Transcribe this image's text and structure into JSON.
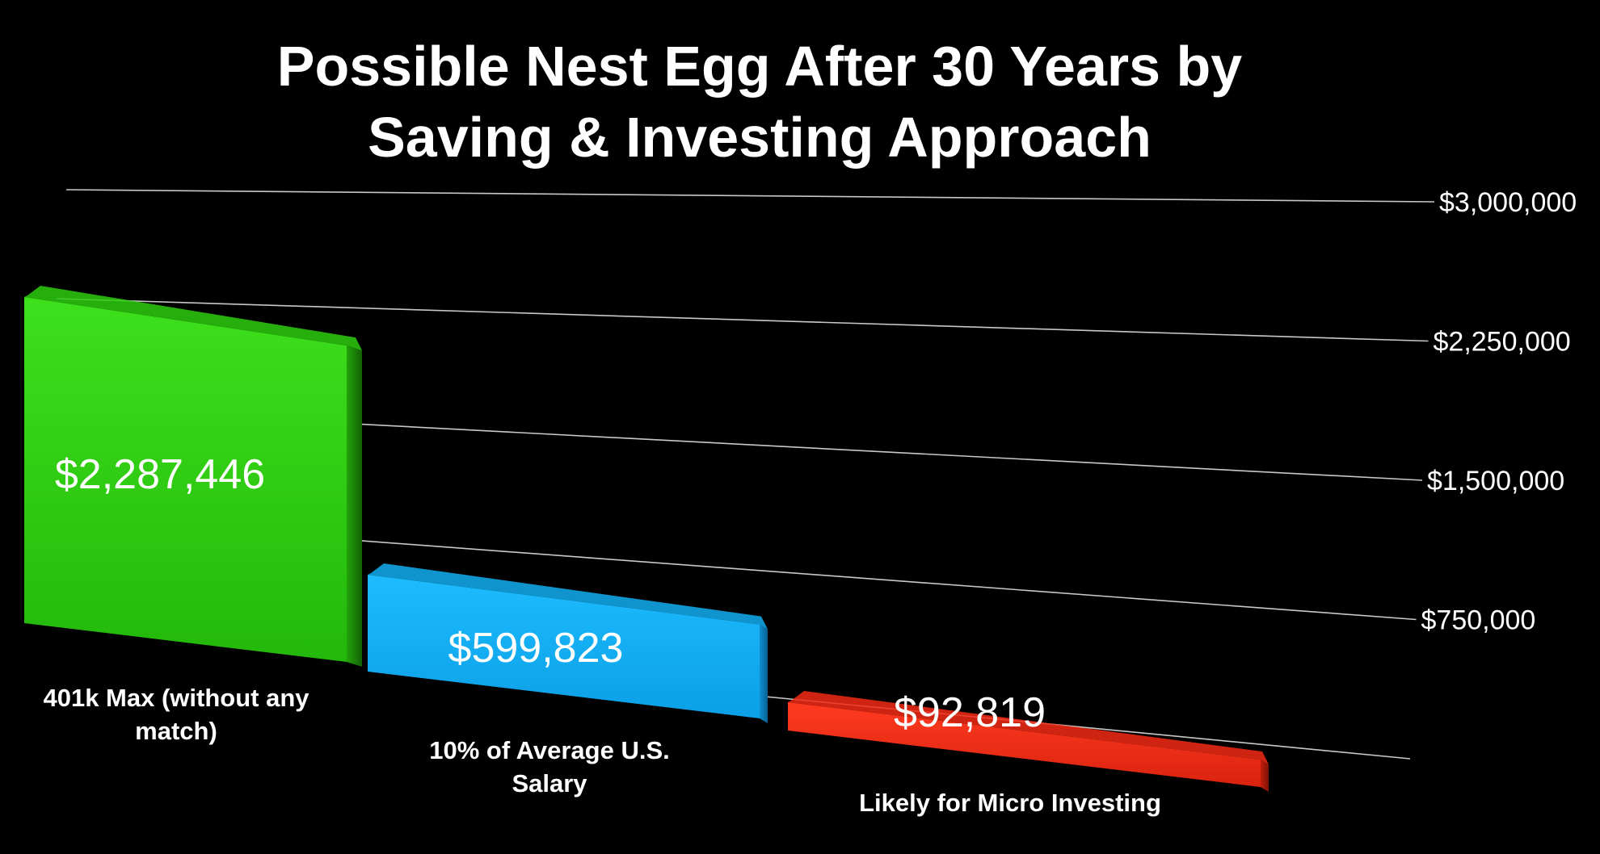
{
  "chart_data": {
    "type": "bar",
    "title": "Possible Nest Egg After 30 Years by Saving & Investing Approach",
    "title_lines": [
      "Possible Nest Egg After 30 Years by",
      "Saving & Investing Approach"
    ],
    "categories": [
      "401k Max (without any match)",
      "10% of Average U.S. Salary",
      "Likely for Micro Investing"
    ],
    "category_label_lines": [
      [
        "401k Max (without any",
        "match)"
      ],
      [
        "10% of Average U.S.",
        "Salary"
      ],
      [
        "Likely for Micro Investing"
      ]
    ],
    "values": [
      2287446,
      599823,
      92819
    ],
    "value_labels": [
      "$2,287,446",
      "$599,823",
      "$92,819"
    ],
    "colors": [
      "#2dcc0f",
      "#12aef2",
      "#f22a14"
    ],
    "ylim": [
      0,
      3000000
    ],
    "yticks": [
      750000,
      1500000,
      2250000,
      3000000
    ],
    "ytick_labels": [
      "$750,000",
      "$1,500,000",
      "$2,250,000",
      "$3,000,000"
    ],
    "grid": true,
    "background": "#000000",
    "style": "3d perspective"
  }
}
